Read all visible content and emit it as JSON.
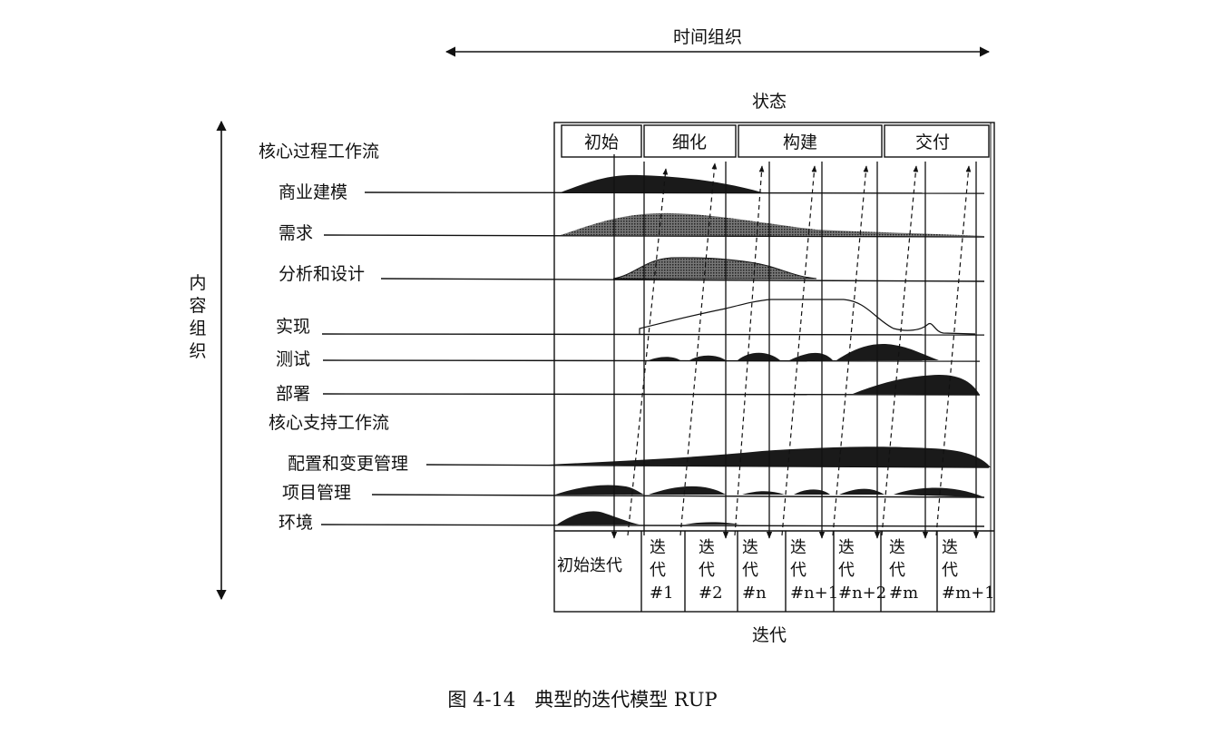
{
  "axes": {
    "time": "时间组织",
    "content": "内容组织",
    "state": "状态",
    "iteration": "迭代"
  },
  "phases": [
    "初始",
    "细化",
    "构建",
    "交付"
  ],
  "sections": {
    "core_process": "核心过程工作流",
    "core_support": "核心支持工作流"
  },
  "workflows": [
    "商业建模",
    "需求",
    "分析和设计",
    "实现",
    "测试",
    "部署",
    "配置和变更管理",
    "项目管理",
    "环境"
  ],
  "iterations": [
    [
      "初始迭代"
    ],
    [
      "迭",
      "代",
      "#1"
    ],
    [
      "迭",
      "代",
      "#2"
    ],
    [
      "迭",
      "代",
      "#n"
    ],
    [
      "迭",
      "代",
      "#n+1"
    ],
    [
      "迭",
      "代",
      "#n+2"
    ],
    [
      "迭",
      "代",
      "#m"
    ],
    [
      "迭",
      "代",
      "#m+1"
    ]
  ],
  "caption": "图 4-14　典型的迭代模型 RUP",
  "colors": {
    "ink": "#111111",
    "fill": "#1a1a1a",
    "hatch": "#555555"
  }
}
